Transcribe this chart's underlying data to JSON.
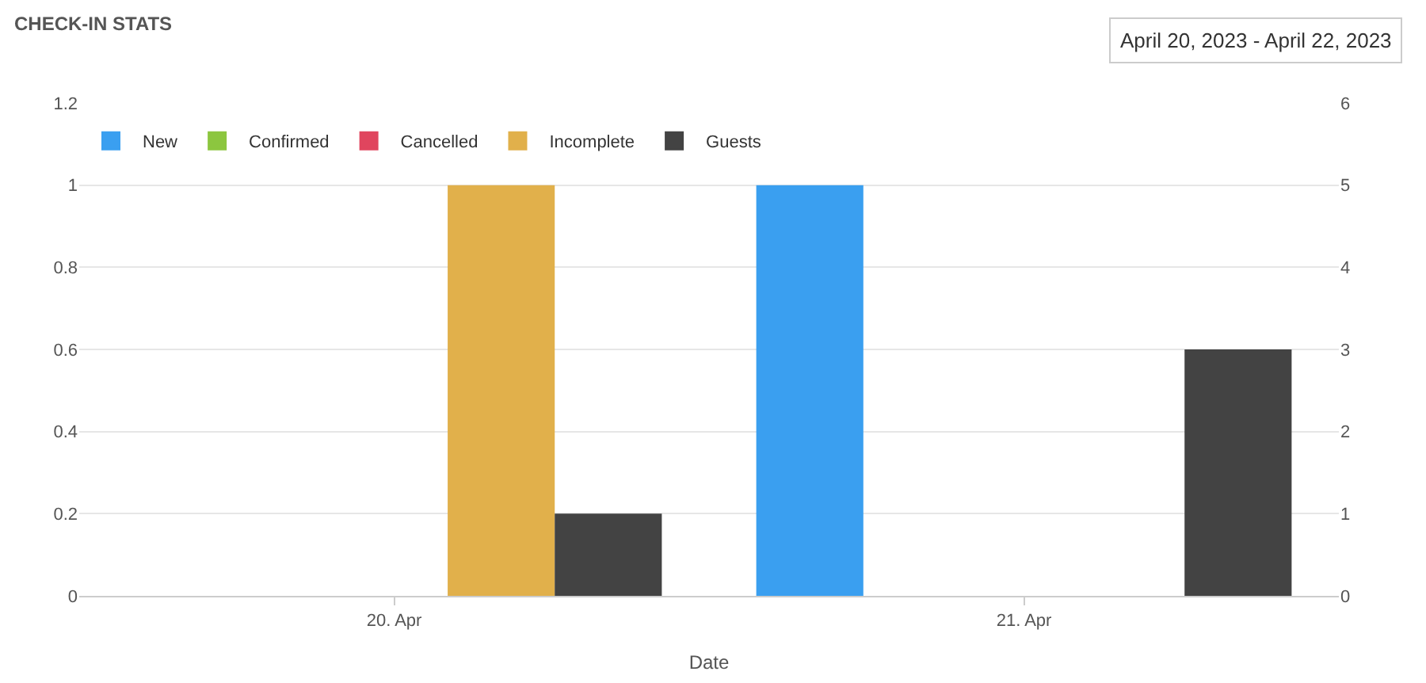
{
  "chart_data": {
    "type": "bar",
    "title": "CHECK-IN STATS",
    "subtitle": "April 20, 2023 - April 22, 2023",
    "xlabel": "Date",
    "categories": [
      "20. Apr",
      "21. Apr"
    ],
    "series": [
      {
        "name": "New",
        "color": "#3a9ff0",
        "values": [
          0,
          1
        ]
      },
      {
        "name": "Confirmed",
        "color": "#8cc63f",
        "values": [
          0,
          0
        ]
      },
      {
        "name": "Cancelled",
        "color": "#e0455e",
        "values": [
          0,
          0
        ]
      },
      {
        "name": "Incomplete",
        "color": "#e1b04b",
        "values": [
          1,
          0
        ]
      },
      {
        "name": "Guests",
        "color": "#434343",
        "values": [
          1,
          3
        ],
        "axis": "y2"
      }
    ],
    "ylim": [
      0,
      1.2
    ],
    "yticks": [
      0,
      0.2,
      0.4,
      0.6,
      0.8,
      1,
      1.2
    ],
    "y2lim": [
      0,
      6
    ],
    "y2ticks": [
      0,
      1,
      2,
      3,
      4,
      5,
      6
    ],
    "grid": "y",
    "legend": "top left"
  }
}
